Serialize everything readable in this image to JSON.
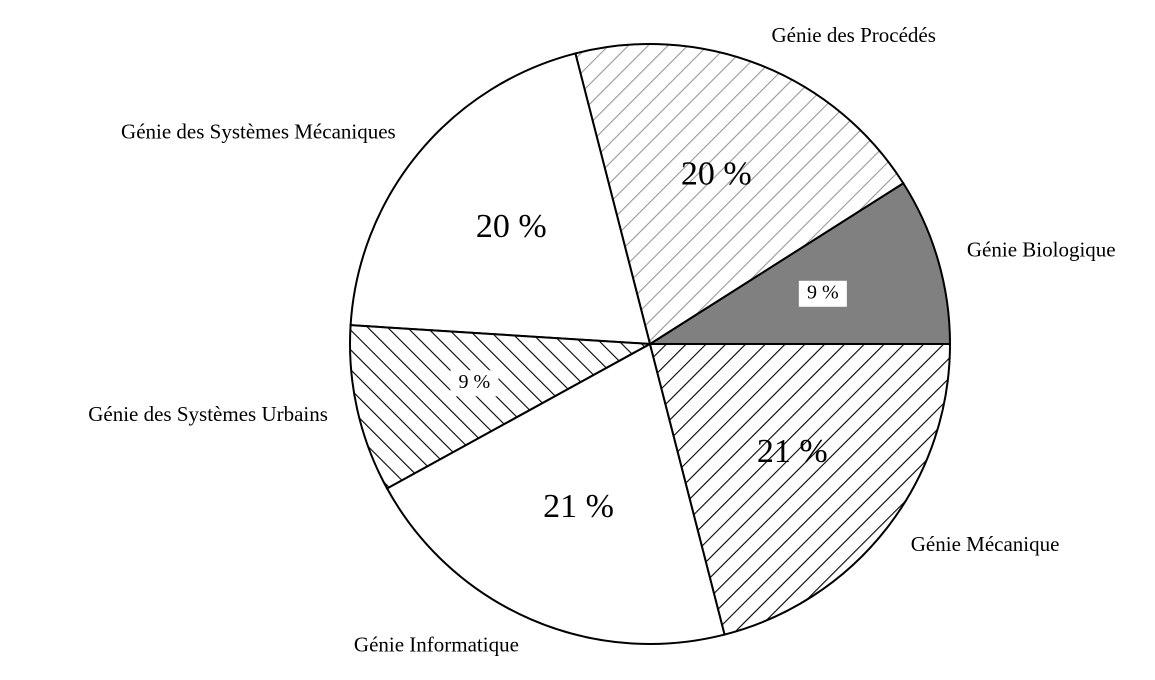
{
  "chart_data": {
    "type": "pie",
    "categories": [
      "Génie Biologique",
      "Génie des Procédés",
      "Génie des Systèmes Mécaniques",
      "Génie des Systèmes Urbains",
      "Génie Informatique",
      "Génie Mécanique"
    ],
    "values": [
      9,
      20,
      20,
      9,
      21,
      21
    ],
    "value_labels": [
      "9 %",
      "20 %",
      "20 %",
      "9 %",
      "21 %",
      "21 %"
    ],
    "colors": [
      "#808080",
      "#ffffff",
      "#ffffff",
      "#ffffff",
      "#ffffff",
      "#ffffff"
    ],
    "hatches": [
      "none",
      "/",
      "none",
      "\\",
      "none",
      "/"
    ],
    "hatch_colors": [
      "#000000",
      "#999999",
      "#000000",
      "#000000",
      "#000000",
      "#000000"
    ]
  }
}
